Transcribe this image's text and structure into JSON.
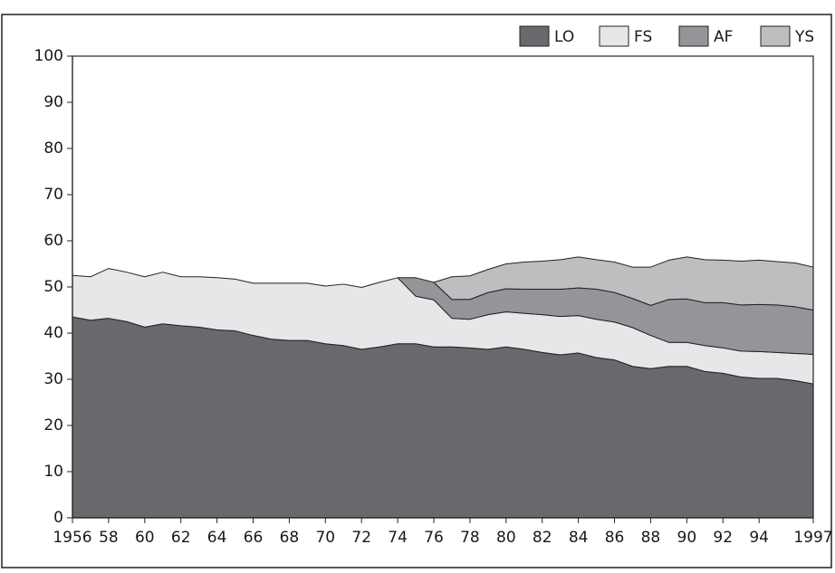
{
  "chart_data": {
    "type": "stacked-area",
    "x": [
      1956,
      1957,
      1958,
      1959,
      1960,
      1961,
      1962,
      1963,
      1964,
      1965,
      1966,
      1967,
      1968,
      1969,
      1970,
      1971,
      1972,
      1973,
      1974,
      1975,
      1976,
      1977,
      1978,
      1979,
      1980,
      1981,
      1982,
      1983,
      1984,
      1985,
      1986,
      1987,
      1988,
      1989,
      1990,
      1991,
      1992,
      1993,
      1994,
      1995,
      1996,
      1997
    ],
    "series": [
      {
        "name": "LO",
        "color": "#68696d",
        "values": [
          43.5,
          42.8,
          43.2,
          42.5,
          41.3,
          42.0,
          41.6,
          41.3,
          40.7,
          40.5,
          39.5,
          38.7,
          38.4,
          38.4,
          37.7,
          37.3,
          36.5,
          37.0,
          37.7,
          37.7,
          37.0,
          37.0,
          36.8,
          36.5,
          37.0,
          36.5,
          35.8,
          35.3,
          35.7,
          34.7,
          34.2,
          32.8,
          32.3,
          32.8,
          32.8,
          31.7,
          31.3,
          30.5,
          30.2,
          30.2,
          29.7,
          29.0
        ]
      },
      {
        "name": "FS",
        "color": "#e6e7e8",
        "values": [
          9.0,
          9.4,
          10.8,
          10.7,
          10.9,
          11.2,
          10.6,
          10.9,
          11.3,
          11.2,
          11.3,
          12.1,
          12.4,
          12.4,
          12.5,
          13.3,
          13.4,
          14.0,
          14.3,
          10.3,
          10.2,
          6.2,
          6.2,
          7.5,
          7.6,
          7.8,
          8.2,
          8.3,
          8.1,
          8.3,
          8.2,
          8.4,
          7.2,
          5.2,
          5.2,
          5.6,
          5.5,
          5.6,
          5.8,
          5.6,
          5.9,
          6.4
        ]
      },
      {
        "name": "AF",
        "color": "#939598",
        "values": [
          null,
          null,
          null,
          null,
          null,
          null,
          null,
          null,
          null,
          null,
          null,
          null,
          null,
          null,
          null,
          null,
          null,
          null,
          0,
          4.0,
          3.8,
          4.1,
          4.3,
          4.8,
          5.0,
          5.2,
          5.5,
          5.9,
          6.0,
          6.5,
          6.4,
          6.3,
          6.5,
          9.3,
          9.4,
          9.3,
          9.8,
          10.0,
          10.2,
          10.3,
          10.1,
          9.6
        ]
      },
      {
        "name": "YS",
        "color": "#bcbec0",
        "values": [
          null,
          null,
          null,
          null,
          null,
          null,
          null,
          null,
          null,
          null,
          null,
          null,
          null,
          null,
          null,
          null,
          null,
          null,
          null,
          null,
          0,
          4.9,
          5.1,
          5.0,
          5.4,
          5.9,
          6.1,
          6.4,
          6.7,
          6.4,
          6.6,
          6.8,
          8.3,
          8.5,
          9.1,
          9.3,
          9.2,
          9.5,
          9.6,
          9.4,
          9.5,
          9.3
        ]
      }
    ],
    "xlim": [
      1956,
      1997
    ],
    "xticks": [
      1956,
      {
        "value": 1958,
        "label": "58"
      },
      {
        "value": 1960,
        "label": "60"
      },
      {
        "value": 1962,
        "label": "62"
      },
      {
        "value": 1964,
        "label": "64"
      },
      {
        "value": 1966,
        "label": "66"
      },
      {
        "value": 1968,
        "label": "68"
      },
      {
        "value": 1970,
        "label": "70"
      },
      {
        "value": 1972,
        "label": "72"
      },
      {
        "value": 1974,
        "label": "74"
      },
      {
        "value": 1976,
        "label": "76"
      },
      {
        "value": 1978,
        "label": "78"
      },
      {
        "value": 1980,
        "label": "80"
      },
      {
        "value": 1982,
        "label": "82"
      },
      {
        "value": 1984,
        "label": "84"
      },
      {
        "value": 1986,
        "label": "86"
      },
      {
        "value": 1988,
        "label": "88"
      },
      {
        "value": 1990,
        "label": "90"
      },
      {
        "value": 1992,
        "label": "92"
      },
      {
        "value": 1994,
        "label": "94"
      },
      1997
    ],
    "ylim": [
      0,
      100
    ],
    "yticks": [
      0,
      10,
      20,
      30,
      40,
      50,
      60,
      70,
      80,
      90,
      100
    ],
    "legend": "top-right"
  }
}
